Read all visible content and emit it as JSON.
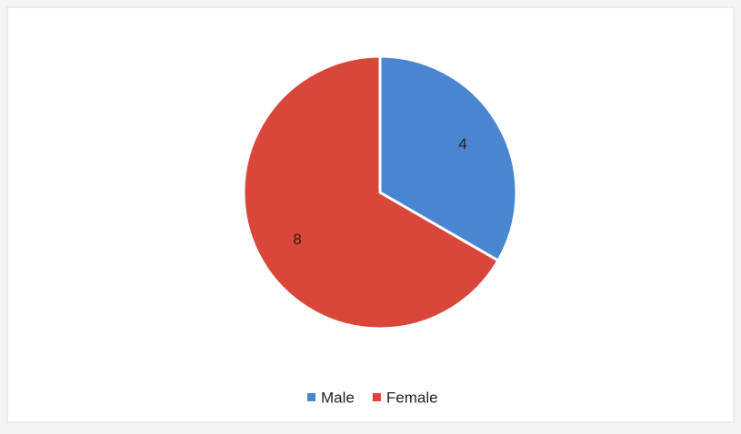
{
  "chart_data": {
    "type": "pie",
    "categories": [
      "Male",
      "Female"
    ],
    "values": [
      4,
      8
    ],
    "colors": [
      "#4a86d0",
      "#d9463a"
    ],
    "legend": "bottom"
  }
}
